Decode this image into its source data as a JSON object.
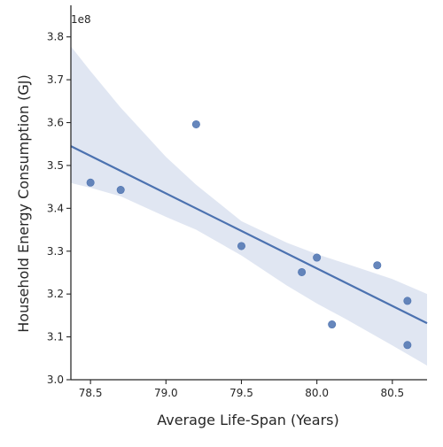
{
  "chart_data": {
    "type": "scatter",
    "xlabel": "Average Life-Span (Years)",
    "ylabel": "Household Energy Consumption (GJ)",
    "y_offset_label": "1e8",
    "xlim": [
      78.37,
      80.73
    ],
    "ylim": [
      3.0,
      3.82
    ],
    "x_ticks": [
      78.5,
      79.0,
      79.5,
      80.0,
      80.5
    ],
    "x_tick_labels": [
      "78.5",
      "79.0",
      "79.5",
      "80.0",
      "80.5"
    ],
    "y_ticks": [
      3.0,
      3.1,
      3.2,
      3.3,
      3.4,
      3.5,
      3.6,
      3.7,
      3.8
    ],
    "y_tick_labels": [
      "3.0",
      "3.1",
      "3.2",
      "3.3",
      "3.4",
      "3.5",
      "3.6",
      "3.7",
      "3.8"
    ],
    "y_scale_factor": 100000000,
    "points": [
      {
        "x": 78.5,
        "y": 3.46
      },
      {
        "x": 78.7,
        "y": 3.443
      },
      {
        "x": 79.2,
        "y": 3.596
      },
      {
        "x": 79.5,
        "y": 3.312
      },
      {
        "x": 79.9,
        "y": 3.251
      },
      {
        "x": 80.0,
        "y": 3.285
      },
      {
        "x": 80.1,
        "y": 3.129
      },
      {
        "x": 80.4,
        "y": 3.267
      },
      {
        "x": 80.6,
        "y": 3.184
      },
      {
        "x": 80.6,
        "y": 3.081
      }
    ],
    "regression": {
      "x": [
        78.37,
        80.73
      ],
      "y": [
        3.545,
        3.132
      ]
    },
    "confidence_band": {
      "x": [
        78.37,
        78.5,
        78.7,
        79.0,
        79.2,
        79.5,
        79.8,
        80.0,
        80.2,
        80.5,
        80.73
      ],
      "upper": [
        3.778,
        3.72,
        3.635,
        3.52,
        3.455,
        3.37,
        3.32,
        3.293,
        3.27,
        3.235,
        3.2
      ],
      "lower": [
        3.459,
        3.448,
        3.428,
        3.38,
        3.35,
        3.29,
        3.22,
        3.178,
        3.14,
        3.08,
        3.033
      ]
    },
    "grid": false,
    "legend": "none",
    "colors": {
      "line": "#4c72b0",
      "points": "#4c72b0",
      "band": "#dde3f1"
    }
  }
}
